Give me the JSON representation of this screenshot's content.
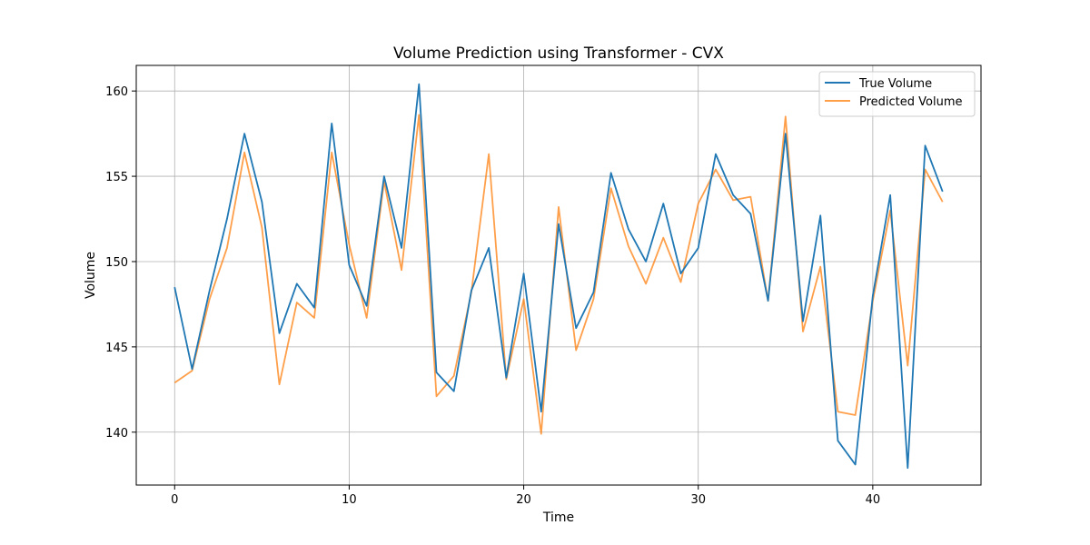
{
  "chart_data": {
    "type": "line",
    "title": "Volume Prediction using Transformer - CVX",
    "xlabel": "Time",
    "ylabel": "Volume",
    "xlim": [
      -2.2,
      46.2
    ],
    "ylim": [
      136.9,
      161.5
    ],
    "xticks": [
      0,
      10,
      20,
      30,
      40
    ],
    "yticks": [
      140,
      145,
      150,
      155,
      160
    ],
    "grid": true,
    "legend_position": "top-right",
    "x": [
      0,
      1,
      2,
      3,
      4,
      5,
      6,
      7,
      8,
      9,
      10,
      11,
      12,
      13,
      14,
      15,
      16,
      17,
      18,
      19,
      20,
      21,
      22,
      23,
      24,
      25,
      26,
      27,
      28,
      29,
      30,
      31,
      32,
      33,
      34,
      35,
      36,
      37,
      38,
      39,
      40,
      41,
      42,
      43,
      44
    ],
    "series": [
      {
        "name": "True Volume",
        "color": "#1f77b4",
        "values": [
          148.5,
          143.7,
          148.3,
          152.5,
          157.5,
          153.5,
          145.8,
          148.7,
          147.3,
          158.1,
          149.8,
          147.4,
          155.0,
          150.8,
          160.4,
          143.5,
          142.4,
          148.3,
          150.8,
          143.2,
          149.3,
          141.2,
          152.2,
          146.1,
          148.2,
          155.2,
          151.9,
          150.0,
          153.4,
          149.3,
          150.8,
          156.3,
          153.9,
          152.8,
          147.7,
          157.5,
          146.5,
          152.7,
          139.5,
          138.1,
          148.0,
          153.9,
          137.9,
          156.8,
          154.1
        ]
      },
      {
        "name": "Predicted Volume",
        "color": "#ff7f0e",
        "values": [
          142.9,
          143.6,
          147.8,
          150.8,
          156.4,
          152.0,
          142.8,
          147.6,
          146.7,
          156.4,
          151.0,
          146.7,
          154.7,
          149.5,
          158.6,
          142.1,
          143.3,
          148.2,
          156.3,
          143.1,
          147.8,
          139.9,
          153.2,
          144.8,
          147.8,
          154.3,
          150.9,
          148.7,
          151.4,
          148.8,
          153.4,
          155.4,
          153.6,
          153.8,
          147.7,
          158.5,
          145.9,
          149.7,
          141.2,
          141.0,
          147.7,
          153.0,
          143.9,
          155.4,
          153.5
        ]
      }
    ]
  }
}
